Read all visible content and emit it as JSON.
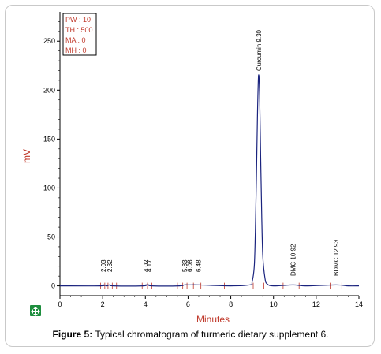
{
  "caption": {
    "label": "Figure 5:",
    "text": "Typical chromatogram of turmeric dietary supplement 6."
  },
  "params": [
    "PW : 10",
    "TH : 500",
    "MA : 0",
    "MH : 0"
  ],
  "chart_data": {
    "type": "line",
    "xlabel": "Minutes",
    "ylabel": "mV",
    "xlim": [
      0,
      14
    ],
    "ylim": [
      -10,
      280
    ],
    "xticks": [
      0,
      2,
      4,
      6,
      8,
      10,
      12,
      14
    ],
    "yticks": [
      0,
      50,
      100,
      150,
      200,
      250
    ],
    "grid": false,
    "series": [
      {
        "color": "#1a237e",
        "x": [
          0,
          1.9,
          2.03,
          2.2,
          2.32,
          2.5,
          3.9,
          4.02,
          4.17,
          4.3,
          5.6,
          5.83,
          6.08,
          6.48,
          8.0,
          8.9,
          9.0,
          9.1,
          9.15,
          9.2,
          9.25,
          9.3,
          9.35,
          9.4,
          9.45,
          9.5,
          9.6,
          9.7,
          10.0,
          10.92,
          11.5,
          12.93,
          13.5,
          14
        ],
        "y": [
          0,
          0,
          1,
          0,
          1,
          0,
          0,
          1,
          1,
          0,
          0,
          1,
          1,
          1,
          0,
          1,
          4,
          20,
          55,
          110,
          175,
          215,
          195,
          130,
          70,
          30,
          8,
          2,
          0,
          1,
          0,
          1,
          0,
          0
        ]
      }
    ],
    "peaks": [
      {
        "label": "2.03",
        "time": 2.03
      },
      {
        "label": "2.32",
        "time": 2.32
      },
      {
        "label": "4.02",
        "time": 4.02
      },
      {
        "label": "4.17",
        "time": 4.17
      },
      {
        "label": "5.83",
        "time": 5.83
      },
      {
        "label": "6.08",
        "time": 6.08
      },
      {
        "label": "6.48",
        "time": 6.48
      },
      {
        "label": "Curcumin 9.30",
        "time": 9.3
      },
      {
        "label": "DMC 10.92",
        "time": 10.92
      },
      {
        "label": "BDMC 12.93",
        "time": 12.93
      }
    ],
    "baseline_markers": [
      1.9,
      2.1,
      2.25,
      2.45,
      2.65,
      3.85,
      4.1,
      4.3,
      5.5,
      5.75,
      5.95,
      6.25,
      6.6,
      7.7,
      9.05,
      9.55,
      10.45,
      11.2,
      12.65,
      13.2
    ]
  },
  "icon": "move-icon"
}
